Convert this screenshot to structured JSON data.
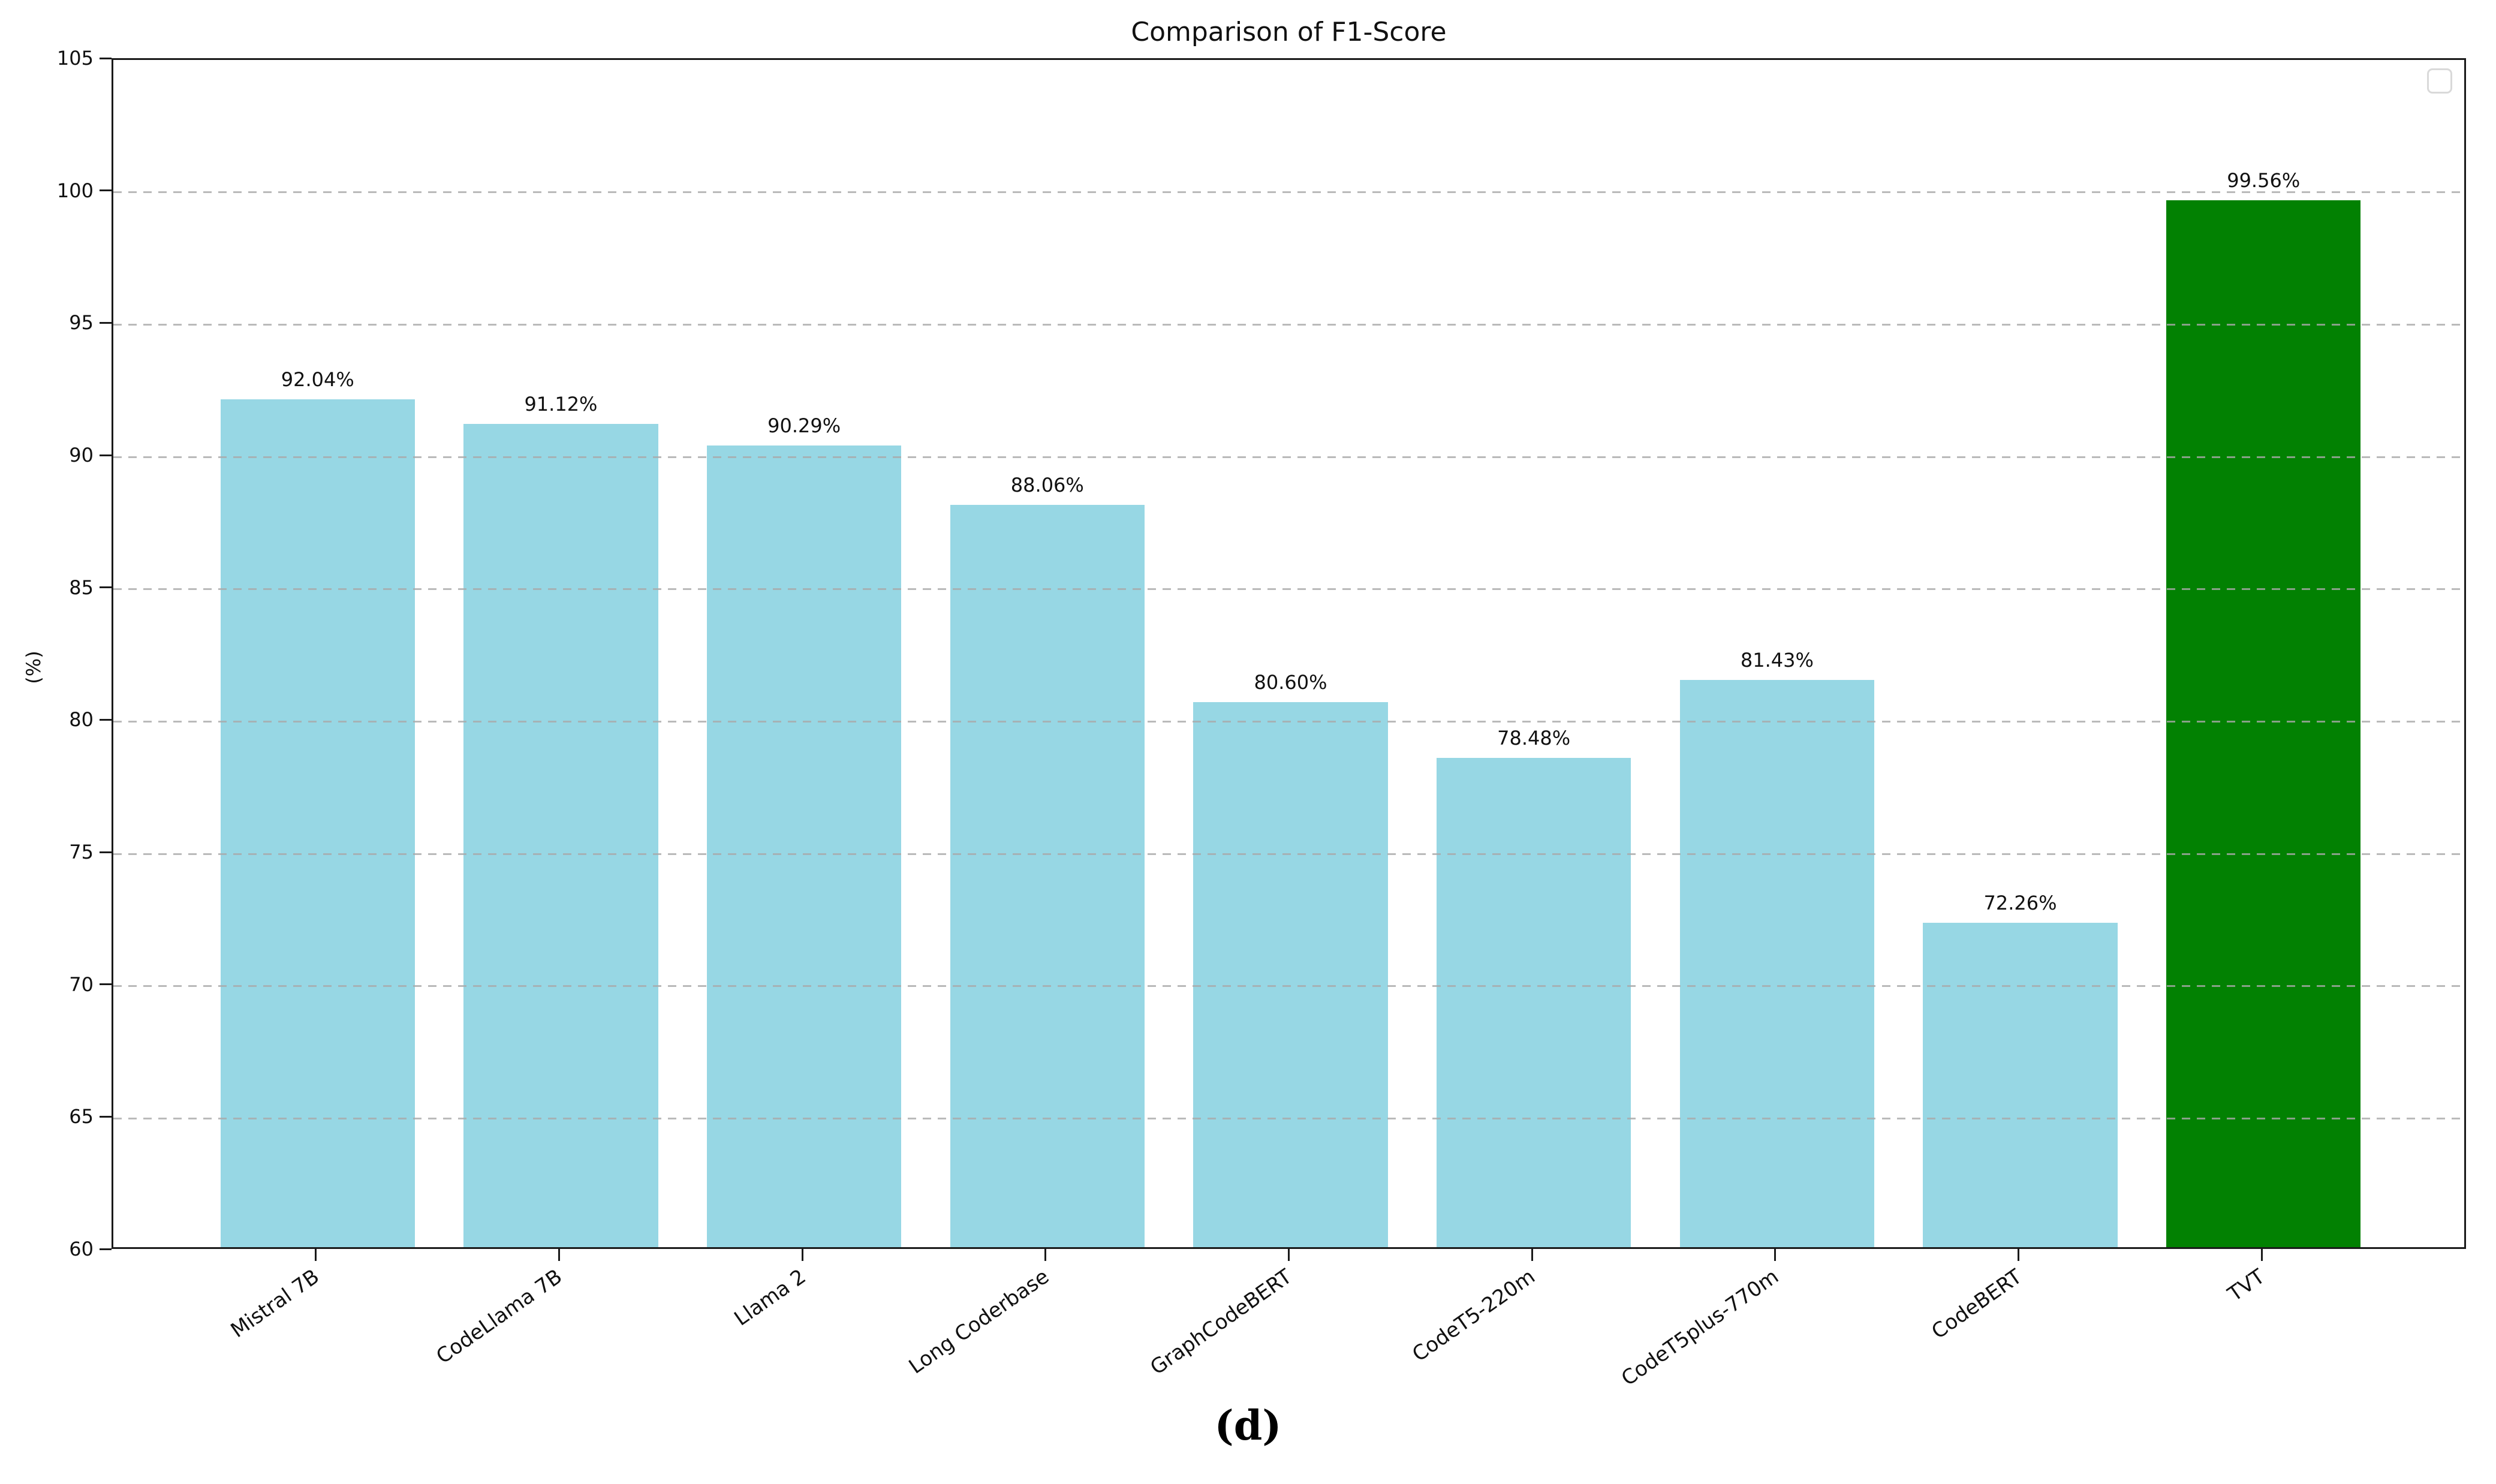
{
  "title": "Comparison of F1-Score",
  "caption": "(d)",
  "legend": {
    "visible": true,
    "empty": true,
    "position": "top-right"
  },
  "chart_data": {
    "type": "bar",
    "title": "Comparison of F1-Score",
    "xlabel": "",
    "ylabel": "(%)",
    "categories": [
      "Mistral 7B",
      "CodeLlama 7B",
      "Llama 2",
      "Long Coderbase",
      "GraphCodeBERT",
      "CodeT5-220m",
      "CodeT5plus-770m",
      "CodeBERT",
      "TVT"
    ],
    "values": [
      92.04,
      91.12,
      90.29,
      88.06,
      80.6,
      78.48,
      81.43,
      72.26,
      99.56
    ],
    "value_labels": [
      "92.04%",
      "91.12%",
      "90.29%",
      "88.06%",
      "80.60%",
      "78.48%",
      "81.43%",
      "72.26%",
      "99.56%"
    ],
    "ylim": [
      60,
      105
    ],
    "yticks": [
      60,
      65,
      70,
      75,
      80,
      85,
      90,
      95,
      100,
      105
    ],
    "grid": "horizontal-dashed",
    "gridline_values": [
      65,
      70,
      75,
      80,
      85,
      90,
      95,
      100
    ],
    "legend_position": "upper-right-empty",
    "colors": {
      "bar_default": "#97D7E4",
      "bar_highlight": "#028102",
      "grid": "#a9a9a9",
      "spine": "#1a1a1a",
      "text": "#111111"
    },
    "highlight_category": "TVT",
    "x_tick_rotation_deg": 35
  }
}
